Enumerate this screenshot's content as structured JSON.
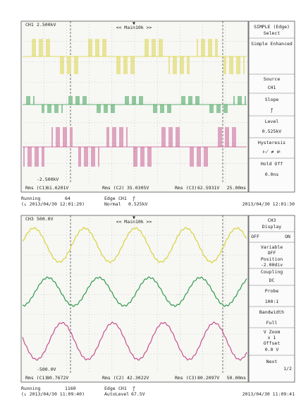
{
  "screens": [
    {
      "channel_label": "CH1",
      "scale_top": "2.500kV",
      "scale_bottom": "-2.500kV",
      "zoom": "<< Main10k >>",
      "timebase": "25.00ms",
      "measurements": [
        {
          "label": "Rms (C1)",
          "value": "61.6201V"
        },
        {
          "label": "Rms (C2)",
          "value": "35.0305V"
        },
        {
          "label": "Rms (C3)",
          "value": "62.5931V"
        }
      ],
      "status": {
        "state": "Running",
        "count": "64",
        "trigger_type": "Edge",
        "trigger_source": "CH1",
        "trigger_slope": "ƒ",
        "mode": "Normal",
        "level": "0.525kV",
        "saved": "(↓ 2013/04/30 12:01:29)",
        "clock": "2013/04/30 12:01:30"
      },
      "menu": [
        "SIMPLE (Edge)",
        "Select",
        "Simple Enhanced",
        "Source",
        "CH1",
        "Slope",
        "ƒ",
        "Level",
        "0.525kV",
        "Hysteresis",
        "Hold Off",
        "0.0ns"
      ]
    },
    {
      "channel_label": "CH3",
      "scale_top": "500.0V",
      "scale_bottom": "-500.0V",
      "zoom": "<< Main10k >>",
      "timebase": "50.00ms",
      "measurements": [
        {
          "label": "Rms (C1)",
          "value": "80.7672V"
        },
        {
          "label": "Rms (C2)",
          "value": "42.3022V"
        },
        {
          "label": "Rms (C3)",
          "value": "80.2097V"
        }
      ],
      "status": {
        "state": "Running",
        "count": "1160",
        "trigger_type": "Edge",
        "trigger_source": "CH1",
        "trigger_slope": "ƒ",
        "mode": "AutoLevel",
        "level": "67.5V",
        "saved": "(↓ 2013/04/30 11:09:40)",
        "clock": "2013/04/30 11:09:41"
      },
      "menu": [
        "CH3",
        "Display",
        "OFF",
        "ON",
        "Variable",
        "OFF",
        "Position",
        "-2.00div",
        "Coupling",
        "DC",
        "Probe",
        "100:1",
        "Bandwidth",
        "Full",
        "V Zoom",
        "x 1",
        "Offset",
        "0.0 V",
        "Next",
        "1/2"
      ]
    }
  ]
}
